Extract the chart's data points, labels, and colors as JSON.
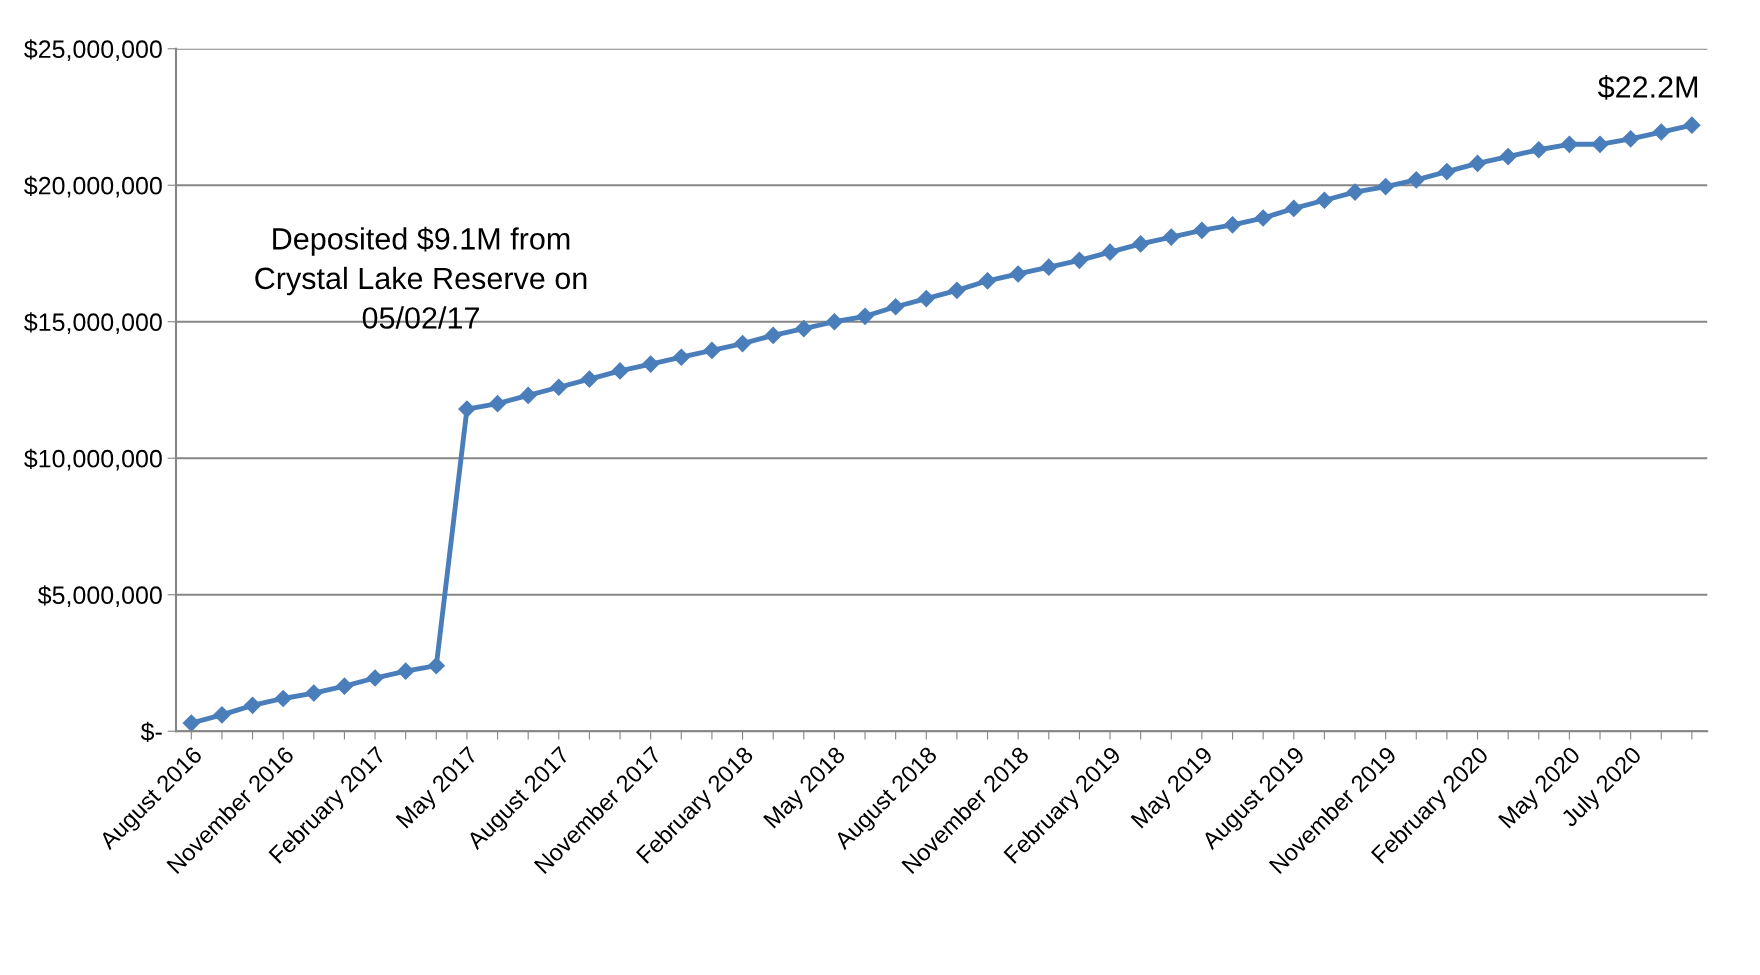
{
  "chart_data": {
    "type": "line",
    "categories": [
      "August 2016",
      null,
      null,
      "November 2016",
      null,
      null,
      "February 2017",
      null,
      null,
      "May 2017",
      null,
      null,
      "August 2017",
      null,
      null,
      "November 2017",
      null,
      null,
      "February 2018",
      null,
      null,
      "May 2018",
      null,
      null,
      "August 2018",
      null,
      null,
      "November 2018",
      null,
      null,
      "February 2019",
      null,
      null,
      "May 2019",
      null,
      null,
      "August 2019",
      null,
      null,
      "November 2019",
      null,
      null,
      "February 2020",
      null,
      null,
      "May 2020",
      null,
      "July 2020",
      null,
      null
    ],
    "series": [
      {
        "color": "#4a7ebb",
        "values": [
          300000,
          600000,
          950000,
          1200000,
          1400000,
          1650000,
          1950000,
          2200000,
          2400000,
          11800000,
          12000000,
          12300000,
          12600000,
          12900000,
          13200000,
          13450000,
          13700000,
          13950000,
          14200000,
          14500000,
          14750000,
          15000000,
          15200000,
          15550000,
          15850000,
          16150000,
          16500000,
          16750000,
          17000000,
          17250000,
          17550000,
          17850000,
          18100000,
          18350000,
          18550000,
          18800000,
          19150000,
          19450000,
          19750000,
          19950000,
          20200000,
          20500000,
          20800000,
          21050000,
          21300000,
          21500000,
          21500000,
          21700000,
          21950000,
          22200000
        ]
      }
    ],
    "ylim": [
      0,
      25000000
    ],
    "yticks": [
      {
        "value": 0,
        "label": "$-"
      },
      {
        "value": 5000000,
        "label": "$5,000,000"
      },
      {
        "value": 10000000,
        "label": "$10,000,000"
      },
      {
        "value": 15000000,
        "label": "$15,000,000"
      },
      {
        "value": 20000000,
        "label": "$20,000,000"
      },
      {
        "value": 25000000,
        "label": "$25,000,000"
      }
    ],
    "annotations": [
      "Deposited $9.1M from\nCrystal Lake Reserve on\n05/02/17",
      "$22.2M"
    ],
    "grid": "y",
    "marker": "diamond",
    "line_style": "solid"
  }
}
